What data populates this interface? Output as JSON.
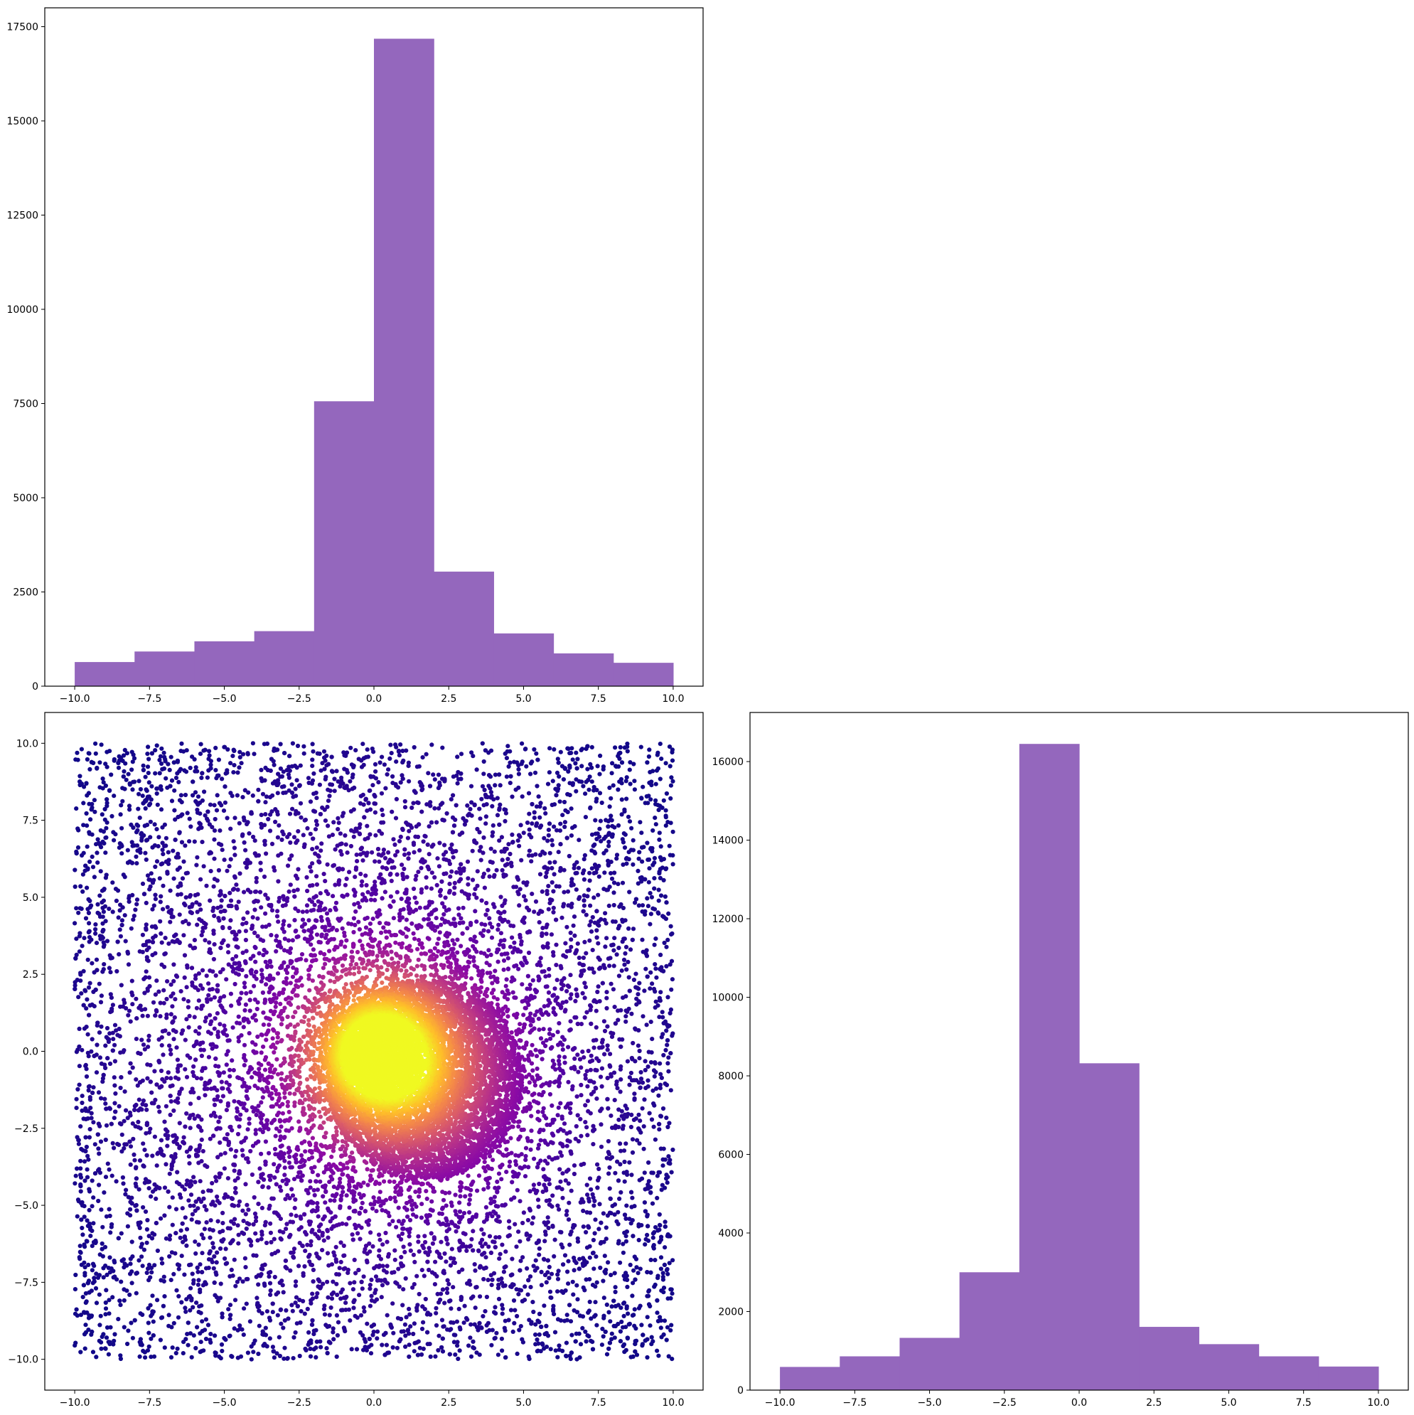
{
  "chart_data": [
    {
      "panel": "top-left",
      "type": "bar",
      "title": "",
      "xlabel": "",
      "ylabel": "",
      "bar_color": "#9467bd",
      "bin_edges": [
        -10,
        -8,
        -6,
        -4,
        -2,
        0,
        2,
        4,
        6,
        8,
        10
      ],
      "values": [
        640,
        920,
        1190,
        1460,
        7560,
        17180,
        3040,
        1400,
        870,
        620
      ],
      "xlim": [
        -11,
        11
      ],
      "ylim": [
        0,
        18000
      ],
      "xticks": [
        -10,
        -7.5,
        -5,
        -2.5,
        0,
        2.5,
        5,
        7.5,
        10
      ],
      "xtick_labels": [
        "−10.0",
        "−7.5",
        "−5.0",
        "−2.5",
        "0.0",
        "2.5",
        "5.0",
        "7.5",
        "10.0"
      ],
      "yticks": [
        0,
        2500,
        5000,
        7500,
        10000,
        12500,
        15000,
        17500
      ],
      "ytick_labels": [
        "0",
        "2500",
        "5000",
        "7500",
        "10000",
        "12500",
        "15000",
        "17500"
      ],
      "grid": false
    },
    {
      "panel": "top-right",
      "type": "empty"
    },
    {
      "panel": "bottom-left",
      "type": "scatter",
      "title": "",
      "xlabel": "",
      "ylabel": "",
      "colormap": "plasma",
      "color_encoding": "point density (dark purple low, yellow high)",
      "colormap_stops": [
        "#0d0887",
        "#5302a3",
        "#8b0aa5",
        "#b83289",
        "#db5c68",
        "#f48849",
        "#febd2a",
        "#f0f921"
      ],
      "x_range": [
        -10,
        10
      ],
      "y_range": [
        -10,
        10
      ],
      "core_center": [
        0,
        0
      ],
      "xlim": [
        -11,
        11
      ],
      "ylim": [
        -11,
        11
      ],
      "xticks": [
        -10,
        -7.5,
        -5,
        -2.5,
        0,
        2.5,
        5,
        7.5,
        10
      ],
      "xtick_labels": [
        "−10.0",
        "−7.5",
        "−5.0",
        "−2.5",
        "0.0",
        "2.5",
        "5.0",
        "7.5",
        "10.0"
      ],
      "yticks": [
        -10,
        -7.5,
        -5,
        -2.5,
        0,
        2.5,
        5,
        7.5,
        10
      ],
      "ytick_labels": [
        "−10.0",
        "−7.5",
        "−5.0",
        "−2.5",
        "0.0",
        "2.5",
        "5.0",
        "7.5",
        "10.0"
      ],
      "grid": false
    },
    {
      "panel": "bottom-right",
      "type": "bar",
      "title": "",
      "xlabel": "",
      "ylabel": "",
      "bar_color": "#9467bd",
      "bin_edges": [
        -10,
        -8,
        -6,
        -4,
        -2,
        0,
        2,
        4,
        6,
        8,
        10
      ],
      "values": [
        590,
        860,
        1330,
        3000,
        16450,
        8320,
        1610,
        1170,
        860,
        600
      ],
      "xlim": [
        -11,
        11
      ],
      "ylim": [
        0,
        17250
      ],
      "xticks": [
        -10,
        -7.5,
        -5,
        -2.5,
        0,
        2.5,
        5,
        7.5,
        10
      ],
      "xtick_labels": [
        "−10.0",
        "−7.5",
        "−5.0",
        "−2.5",
        "0.0",
        "2.5",
        "5.0",
        "7.5",
        "10.0"
      ],
      "yticks": [
        0,
        2000,
        4000,
        6000,
        8000,
        10000,
        12000,
        14000,
        16000
      ],
      "ytick_labels": [
        "0",
        "2000",
        "4000",
        "6000",
        "8000",
        "10000",
        "12000",
        "14000",
        "16000"
      ],
      "grid": false
    }
  ]
}
